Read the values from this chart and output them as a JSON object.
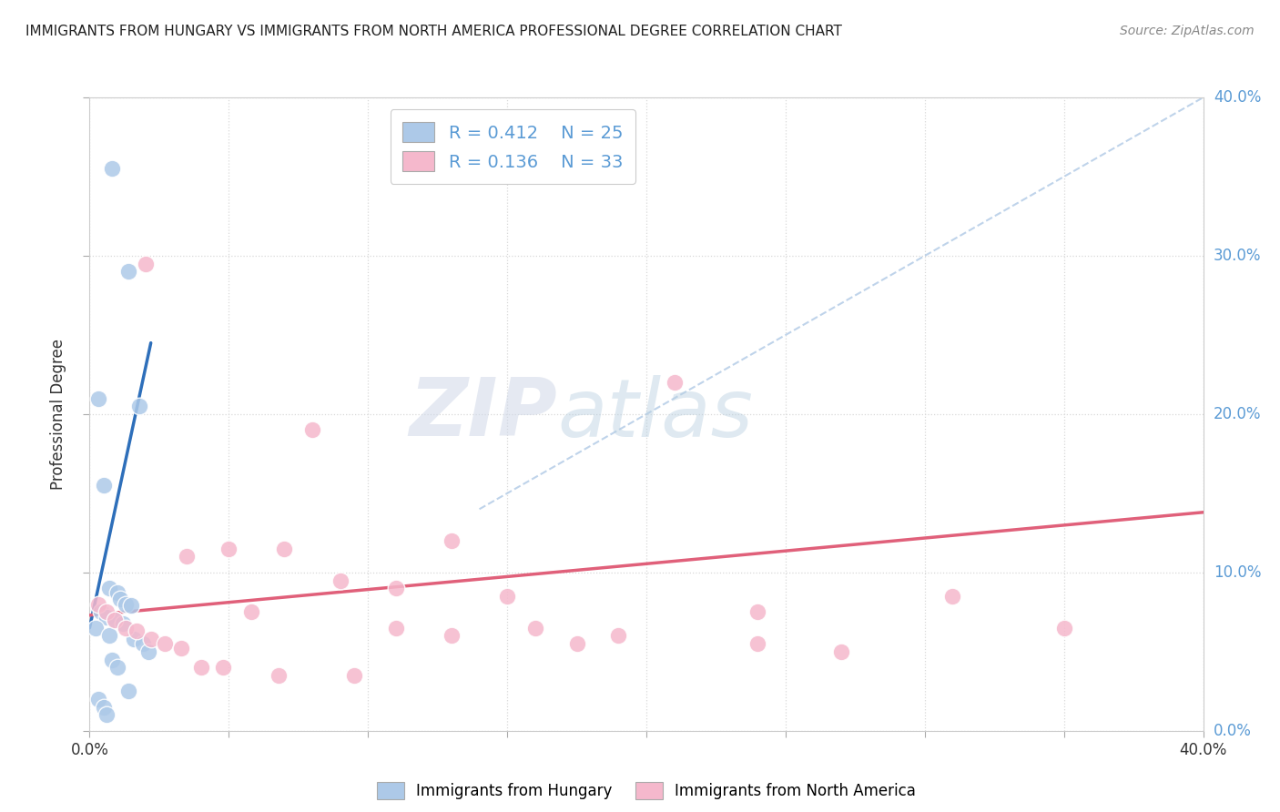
{
  "title": "IMMIGRANTS FROM HUNGARY VS IMMIGRANTS FROM NORTH AMERICA PROFESSIONAL DEGREE CORRELATION CHART",
  "source": "Source: ZipAtlas.com",
  "ylabel": "Professional Degree",
  "right_ytick_labels": [
    "0.0%",
    "10.0%",
    "20.0%",
    "30.0%",
    "40.0%"
  ],
  "xlim": [
    0.0,
    0.4
  ],
  "ylim": [
    0.0,
    0.4
  ],
  "legend_r1": "R = 0.412",
  "legend_n1": "N = 25",
  "legend_r2": "R = 0.136",
  "legend_n2": "N = 33",
  "blue_fill": "#adc9e8",
  "pink_fill": "#f5b8cc",
  "blue_line_color": "#2e6fba",
  "pink_line_color": "#e0607a",
  "dashed_line_color": "#b8cfe8",
  "background_color": "#ffffff",
  "watermark_zip": "ZIP",
  "watermark_atlas": "atlas",
  "grid_color": "#d8d8d8",
  "right_axis_color": "#5b9bd5",
  "blue_scatter_x": [
    0.008,
    0.014,
    0.018,
    0.003,
    0.005,
    0.007,
    0.01,
    0.011,
    0.013,
    0.015,
    0.004,
    0.006,
    0.009,
    0.012,
    0.002,
    0.007,
    0.016,
    0.019,
    0.021,
    0.008,
    0.01,
    0.014,
    0.003,
    0.005,
    0.006
  ],
  "blue_scatter_y": [
    0.355,
    0.29,
    0.205,
    0.21,
    0.155,
    0.09,
    0.087,
    0.083,
    0.08,
    0.079,
    0.075,
    0.072,
    0.07,
    0.068,
    0.065,
    0.06,
    0.058,
    0.055,
    0.05,
    0.045,
    0.04,
    0.025,
    0.02,
    0.015,
    0.01
  ],
  "pink_scatter_x": [
    0.02,
    0.035,
    0.05,
    0.07,
    0.09,
    0.11,
    0.13,
    0.16,
    0.19,
    0.21,
    0.24,
    0.27,
    0.003,
    0.006,
    0.009,
    0.013,
    0.017,
    0.022,
    0.027,
    0.033,
    0.04,
    0.048,
    0.058,
    0.068,
    0.08,
    0.095,
    0.11,
    0.13,
    0.15,
    0.175,
    0.24,
    0.31,
    0.35
  ],
  "pink_scatter_y": [
    0.295,
    0.11,
    0.115,
    0.115,
    0.095,
    0.09,
    0.12,
    0.065,
    0.06,
    0.22,
    0.055,
    0.05,
    0.08,
    0.075,
    0.07,
    0.065,
    0.063,
    0.058,
    0.055,
    0.052,
    0.04,
    0.04,
    0.075,
    0.035,
    0.19,
    0.035,
    0.065,
    0.06,
    0.085,
    0.055,
    0.075,
    0.085,
    0.065
  ],
  "blue_line_x": [
    0.0,
    0.022
  ],
  "blue_line_y": [
    0.065,
    0.245
  ],
  "pink_line_x": [
    0.0,
    0.4
  ],
  "pink_line_y": [
    0.073,
    0.138
  ],
  "dashed_line_x": [
    0.14,
    0.4
  ],
  "dashed_line_y": [
    0.14,
    0.4
  ],
  "xtick_positions": [
    0.0,
    0.05,
    0.1,
    0.15,
    0.2,
    0.25,
    0.3,
    0.35,
    0.4
  ],
  "ytick_positions": [
    0.0,
    0.1,
    0.2,
    0.3,
    0.4
  ]
}
